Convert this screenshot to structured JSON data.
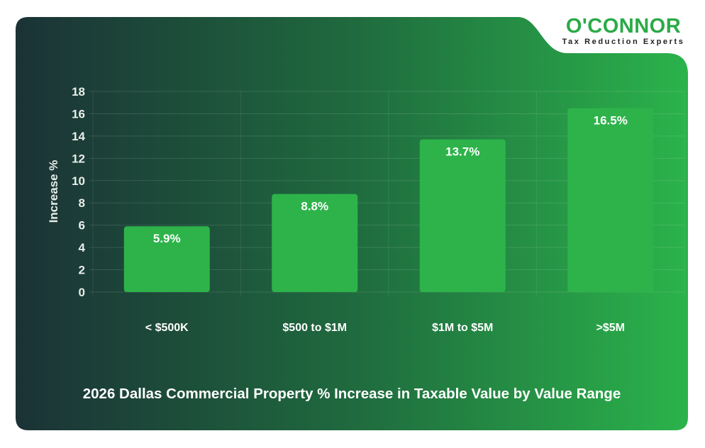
{
  "brand": {
    "name": "O'CONNOR",
    "tagline": "Tax Reduction Experts"
  },
  "colors": {
    "bar": "#2db34a",
    "bg_dark": "#1b3236",
    "bg_light": "#2cb34b",
    "text": "#ffffff"
  },
  "chart_data": {
    "type": "bar",
    "title": "2026 Dallas Commercial Property % Increase in Taxable Value by Value Range",
    "xlabel": "",
    "ylabel": "Increase %",
    "categories": [
      "< $500K",
      "$500 to $1M",
      "$1M to $5M",
      ">$5M"
    ],
    "values": [
      5.9,
      8.8,
      13.7,
      16.5
    ],
    "data_labels": [
      "5.9%",
      "8.8%",
      "13.7%",
      "16.5%"
    ],
    "ylim": [
      0,
      18
    ],
    "yticks": [
      "0",
      "2",
      "4",
      "6",
      "8",
      "10",
      "12",
      "14",
      "16",
      "18"
    ],
    "grid": true,
    "legend": "none"
  }
}
